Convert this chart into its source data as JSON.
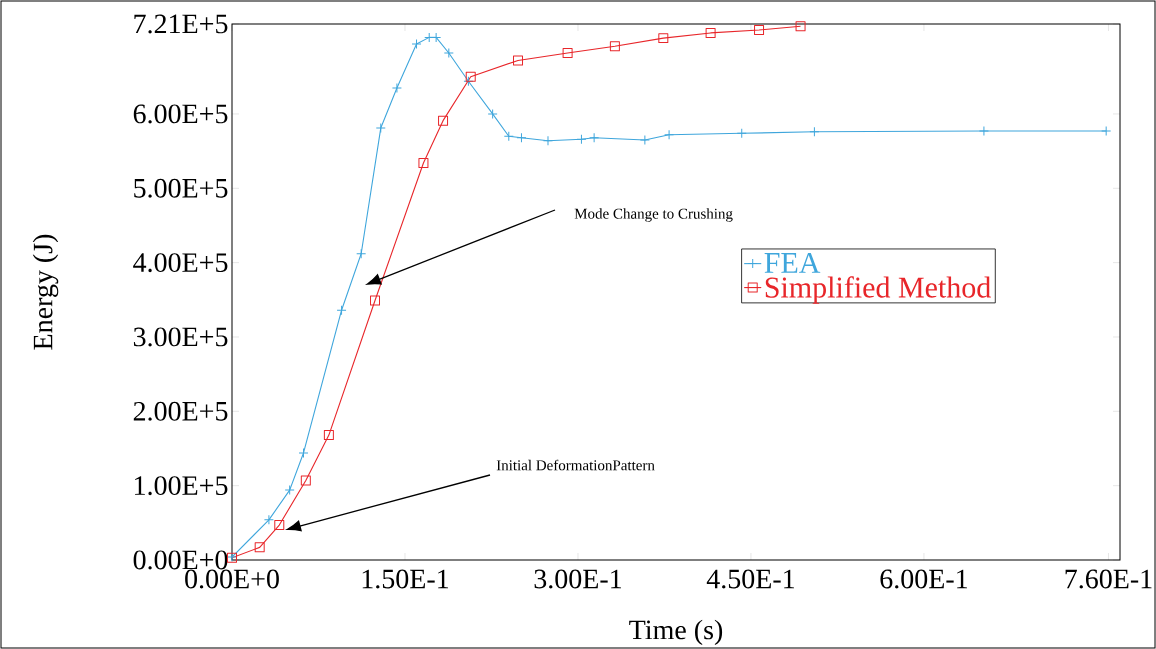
{
  "chart_data": {
    "type": "line",
    "xlabel": "Time (s)",
    "ylabel": "Energy (J)",
    "xlim": [
      0,
      0.77
    ],
    "ylim": [
      0,
      721000
    ],
    "xticks": [
      {
        "value": 0,
        "label": "0.00E+0"
      },
      {
        "value": 0.15,
        "label": "1.50E-1"
      },
      {
        "value": 0.3,
        "label": "3.00E-1"
      },
      {
        "value": 0.45,
        "label": "4.50E-1"
      },
      {
        "value": 0.6,
        "label": "6.00E-1"
      },
      {
        "value": 0.76,
        "label": "7.60E-1"
      }
    ],
    "yticks": [
      {
        "value": 0,
        "label": "0.00E+0"
      },
      {
        "value": 100000,
        "label": "1.00E+5"
      },
      {
        "value": 200000,
        "label": "2.00E+5"
      },
      {
        "value": 300000,
        "label": "3.00E+5"
      },
      {
        "value": 400000,
        "label": "4.00E+5"
      },
      {
        "value": 500000,
        "label": "5.00E+5"
      },
      {
        "value": 600000,
        "label": "6.00E+5"
      },
      {
        "value": 721000,
        "label": "7.21E+5"
      }
    ],
    "grid": false,
    "legend": "right",
    "series": [
      {
        "name": "FEA",
        "color": "#3fa6dc",
        "marker": "cross",
        "x": [
          0,
          0.032,
          0.05,
          0.062,
          0.095,
          0.112,
          0.129,
          0.143,
          0.16,
          0.171,
          0.177,
          0.188,
          0.205,
          0.226,
          0.24,
          0.251,
          0.274,
          0.303,
          0.314,
          0.358,
          0.379,
          0.442,
          0.505,
          0.652,
          0.758
        ],
        "values": [
          4000,
          54000,
          94000,
          144000,
          336000,
          412000,
          581000,
          635000,
          694000,
          703000,
          703000,
          682000,
          644000,
          600000,
          570000,
          568000,
          564000,
          566000,
          568000,
          565000,
          572000,
          574000,
          576000,
          577000,
          577000
        ]
      },
      {
        "name": "Simplified Method",
        "color": "#e8262a",
        "marker": "square",
        "x": [
          0,
          0.024,
          0.041,
          0.064,
          0.084,
          0.124,
          0.166,
          0.183,
          0.207,
          0.248,
          0.291,
          0.332,
          0.374,
          0.415,
          0.457,
          0.493
        ],
        "values": [
          3000,
          17000,
          47000,
          107000,
          168000,
          349000,
          534000,
          591000,
          650000,
          672000,
          682000,
          691000,
          702000,
          709000,
          713000,
          718000
        ]
      }
    ],
    "annotations": [
      "Mode Change to Crushing",
      "Initial DeformationPattern"
    ]
  }
}
